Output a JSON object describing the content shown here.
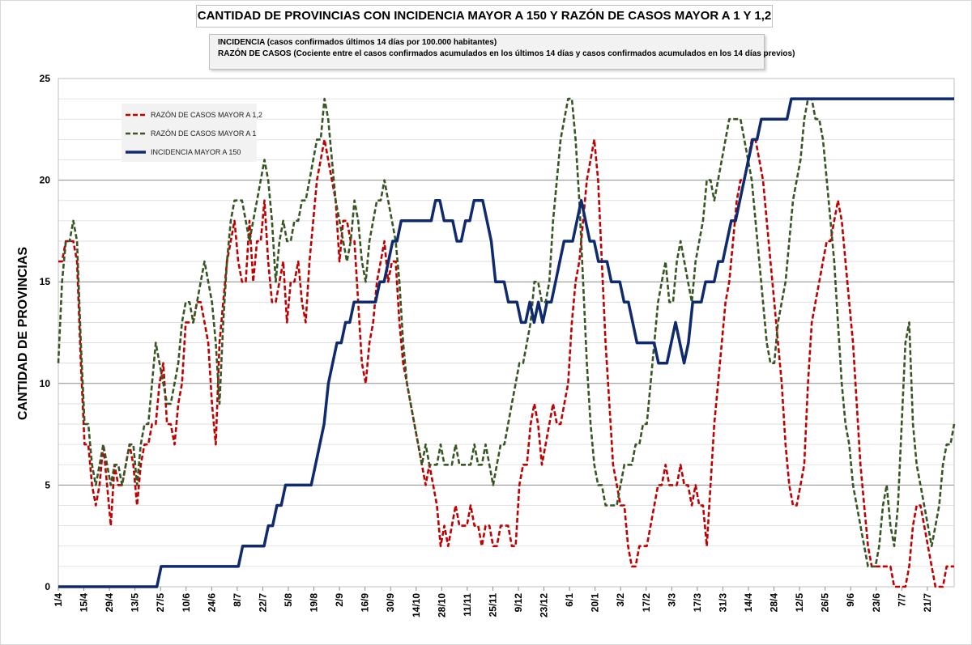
{
  "chart_data": {
    "type": "line",
    "title": "CANTIDAD DE PROVINCIAS CON INCIDENCIA MAYOR A 150 Y RAZÓN DE CASOS MAYOR A 1 Y 1,2",
    "subtitle_lines": [
      "INCIDENCIA (casos confirmados últimos 14 días por 100.000  habitantes)",
      "RAZÓN DE CASOS (Cociente entre el casos confirmados acumulados en los últimos 14 días y casos confirmados acumulados en los 14 días previos)"
    ],
    "ylabel": "CANTIDAD DE PROVINCIAS",
    "xlabel": "",
    "ylim": [
      0,
      25
    ],
    "yticks": [
      0,
      5,
      10,
      15,
      20,
      25
    ],
    "grid": true,
    "legend_position": "top-left",
    "xtick_labels": [
      "1/4",
      "15/4",
      "29/4",
      "13/5",
      "27/5",
      "10/6",
      "24/6",
      "8/7",
      "22/7",
      "5/8",
      "19/8",
      "2/9",
      "16/9",
      "30/9",
      "14/10",
      "28/10",
      "11/11",
      "25/11",
      "9/12",
      "23/12",
      "6/1",
      "20/1",
      "3/2",
      "17/2",
      "3/3",
      "17/3",
      "31/3",
      "14/4",
      "28/4",
      "12/5",
      "26/5",
      "9/6",
      "23/6",
      "7/7",
      "21/7"
    ],
    "series": [
      {
        "name": "RAZÓN DE CASOS MAYOR A 1,2",
        "color": "#c00000",
        "dash": "dashed",
        "values": [
          16,
          16,
          17,
          17,
          17,
          16,
          11,
          7,
          7,
          5,
          4,
          5,
          7,
          5,
          3,
          6,
          5,
          5,
          6,
          7,
          6,
          4,
          6,
          7,
          7,
          8,
          8,
          10,
          11,
          8,
          8,
          7,
          9,
          10,
          13,
          13,
          13,
          14,
          14,
          13,
          12,
          9,
          7,
          12,
          14,
          16,
          17,
          18,
          16,
          15,
          15,
          18,
          15,
          17,
          17,
          19,
          16,
          14,
          14,
          15,
          16,
          13,
          15,
          15,
          16,
          14,
          13,
          16,
          18,
          20,
          21,
          22,
          21,
          20,
          19,
          16,
          18,
          18,
          17,
          17,
          14,
          11,
          10,
          12,
          13,
          15,
          16,
          17,
          15,
          16,
          16,
          13,
          11,
          10,
          9,
          8,
          7,
          6,
          5,
          6,
          5,
          4,
          2,
          3,
          2,
          3,
          4,
          3,
          3,
          3,
          4,
          3,
          3,
          2,
          3,
          3,
          2,
          2,
          3,
          3,
          3,
          2,
          2,
          5,
          6,
          6,
          8,
          9,
          8,
          6,
          7,
          8,
          9,
          8,
          8,
          9,
          10,
          13,
          15,
          16,
          18,
          20,
          21,
          22,
          20,
          16,
          12,
          9,
          6,
          5,
          4,
          4,
          2,
          1,
          1,
          2,
          2,
          2,
          3,
          4,
          5,
          5,
          6,
          5,
          5,
          5,
          6,
          5,
          5,
          4,
          5,
          4,
          4,
          2,
          5,
          8,
          10,
          12,
          14,
          15,
          17,
          19,
          20,
          20,
          21,
          22,
          22,
          21,
          20,
          18,
          16,
          14,
          12,
          10,
          7,
          5,
          4,
          4,
          5,
          6,
          10,
          13,
          14,
          15,
          16,
          17,
          17,
          18,
          19,
          18,
          16,
          14,
          12,
          9,
          6,
          4,
          2,
          1,
          1,
          1,
          1,
          1,
          1,
          0,
          0,
          0,
          0,
          1,
          3,
          4,
          4,
          3,
          2,
          1,
          0,
          0,
          0,
          1,
          1,
          1
        ]
      },
      {
        "name": "RAZÓN DE CASOS MAYOR A 1",
        "color": "#375623",
        "dash": "dashed",
        "values": [
          11,
          15,
          17,
          17,
          18,
          17,
          12,
          8,
          8,
          6,
          5,
          6,
          7,
          6,
          5,
          6,
          6,
          5,
          6,
          7,
          7,
          5,
          7,
          8,
          8,
          10,
          12,
          11,
          10,
          9,
          9,
          10,
          11,
          13,
          14,
          14,
          13,
          14,
          15,
          16,
          15,
          14,
          12,
          9,
          13,
          16,
          18,
          19,
          19,
          19,
          18,
          17,
          18,
          19,
          20,
          21,
          20,
          18,
          15,
          17,
          18,
          17,
          17,
          18,
          18,
          19,
          19,
          20,
          21,
          22,
          22,
          24,
          23,
          21,
          19,
          18,
          17,
          16,
          17,
          19,
          18,
          16,
          15,
          17,
          18,
          19,
          19,
          20,
          19,
          18,
          17,
          15,
          12,
          10,
          9,
          8,
          7,
          6,
          7,
          6,
          6,
          6,
          7,
          6,
          6,
          6,
          7,
          6,
          6,
          6,
          6,
          7,
          6,
          6,
          7,
          6,
          5,
          6,
          7,
          7,
          8,
          9,
          10,
          11,
          11,
          12,
          13,
          15,
          15,
          14,
          14,
          15,
          18,
          20,
          22,
          23,
          24,
          24,
          22,
          19,
          15,
          11,
          8,
          6,
          5,
          5,
          4,
          4,
          4,
          4,
          5,
          6,
          6,
          6,
          7,
          7,
          8,
          8,
          10,
          12,
          14,
          15,
          16,
          14,
          14,
          16,
          17,
          16,
          15,
          14,
          16,
          17,
          18,
          20,
          20,
          19,
          20,
          21,
          22,
          23,
          23,
          23,
          23,
          22,
          21,
          20,
          18,
          16,
          14,
          12,
          11,
          11,
          13,
          14,
          15,
          17,
          19,
          20,
          21,
          23,
          24,
          24,
          23,
          23,
          22,
          20,
          18,
          16,
          13,
          10,
          8,
          7,
          5,
          4,
          3,
          2,
          1,
          1,
          1,
          2,
          4,
          5,
          3,
          2,
          4,
          8,
          12,
          13,
          8,
          6,
          5,
          4,
          3,
          2,
          3,
          4,
          6,
          7,
          7,
          8
        ]
      },
      {
        "name": "INCIDENCIA MAYOR A 150",
        "color": "#0f2a6e",
        "dash": "solid",
        "values": [
          0,
          0,
          0,
          0,
          0,
          0,
          0,
          0,
          0,
          0,
          0,
          0,
          0,
          0,
          0,
          0,
          0,
          0,
          0,
          0,
          0,
          0,
          0,
          0,
          1,
          1,
          1,
          1,
          1,
          1,
          1,
          1,
          1,
          1,
          1,
          1,
          1,
          1,
          1,
          1,
          1,
          1,
          1,
          2,
          2,
          2,
          2,
          2,
          2,
          3,
          3,
          4,
          4,
          5,
          5,
          5,
          5,
          5,
          5,
          5,
          6,
          7,
          8,
          10,
          11,
          12,
          12,
          13,
          13,
          14,
          14,
          14,
          14,
          14,
          14,
          15,
          15,
          16,
          17,
          17,
          18,
          18,
          18,
          18,
          18,
          18,
          18,
          18,
          19,
          19,
          18,
          18,
          18,
          17,
          17,
          18,
          18,
          19,
          19,
          19,
          18,
          17,
          15,
          15,
          15,
          14,
          14,
          14,
          13,
          13,
          14,
          13,
          14,
          13,
          14,
          14,
          15,
          16,
          17,
          17,
          17,
          18,
          19,
          18,
          17,
          17,
          16,
          16,
          16,
          15,
          15,
          15,
          14,
          14,
          13,
          12,
          12,
          12,
          12,
          12,
          11,
          11,
          11,
          12,
          13,
          12,
          11,
          12,
          14,
          14,
          14,
          15,
          15,
          15,
          16,
          16,
          17,
          18,
          18,
          19,
          20,
          21,
          22,
          22,
          23,
          23,
          23,
          23,
          23,
          23,
          23,
          24,
          24,
          24,
          24,
          24,
          24,
          24,
          24,
          24,
          24,
          24,
          24,
          24,
          24,
          24,
          24,
          24,
          24,
          24,
          24,
          24,
          24,
          24,
          24,
          24,
          24,
          24,
          24,
          24,
          24,
          24,
          24,
          24,
          24,
          24,
          24,
          24,
          24,
          24
        ]
      }
    ]
  }
}
